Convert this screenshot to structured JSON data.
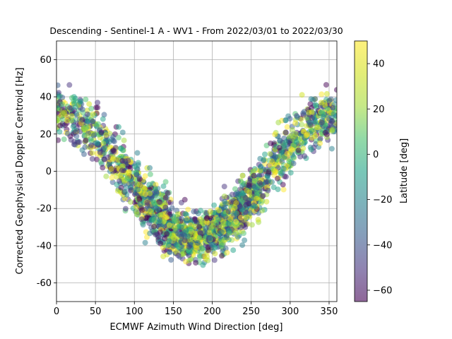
{
  "chart_data": {
    "type": "scatter",
    "title": "Descending - Sentinel-1 A - WV1 - From 2022/03/01 to 2022/03/30",
    "xlabel": "ECMWF Azimuth Wind Direction [deg]",
    "ylabel": "Corrected Geophysical Doppler Centroid [Hz]",
    "xlim": [
      0,
      360
    ],
    "ylim": [
      -70,
      70
    ],
    "xticks": [
      "0",
      "50",
      "100",
      "150",
      "200",
      "250",
      "300",
      "350"
    ],
    "yticks": [
      "-60",
      "-40",
      "-20",
      "0",
      "20",
      "40",
      "60"
    ],
    "grid": true,
    "colorbar": {
      "label": "Latitude [deg]",
      "range": [
        -65,
        50
      ],
      "ticks": [
        "40",
        "20",
        "0",
        "−20",
        "−40",
        "−60"
      ],
      "colormap": "viridis"
    },
    "point_alpha": 0.5,
    "series_summary": {
      "shape": "Doppler centroid vs wind direction follows a cosine-like curve: about +30 Hz near 0 and 360 deg, minimum about -35 Hz near 180 deg",
      "sample_points": [
        {
          "x": 5,
          "y": 35
        },
        {
          "x": 20,
          "y": 30
        },
        {
          "x": 40,
          "y": 25
        },
        {
          "x": 60,
          "y": 15
        },
        {
          "x": 80,
          "y": 5
        },
        {
          "x": 100,
          "y": -10
        },
        {
          "x": 120,
          "y": -22
        },
        {
          "x": 150,
          "y": -32
        },
        {
          "x": 180,
          "y": -37
        },
        {
          "x": 210,
          "y": -30
        },
        {
          "x": 240,
          "y": -18
        },
        {
          "x": 270,
          "y": 5
        },
        {
          "x": 300,
          "y": 20
        },
        {
          "x": 330,
          "y": 30
        },
        {
          "x": 355,
          "y": 32
        }
      ]
    }
  }
}
